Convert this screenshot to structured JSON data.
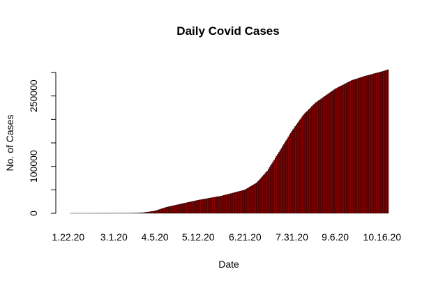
{
  "chart_data": {
    "type": "bar",
    "title": "Daily Covid Cases",
    "xlabel": "Date",
    "ylabel": "No. of Cases",
    "bar_color": "#8b0000",
    "bar_border_color": "#000000",
    "grid": false,
    "legend": "none",
    "x_date_start": "1.22.20",
    "x_date_end": "10.21.20",
    "x_tick_labels": [
      "1.22.20",
      "3.1.20",
      "4.5.20",
      "5.12.20",
      "6.21.20",
      "7.31.20",
      "9.6.20",
      "10.16.20"
    ],
    "ylim": [
      0,
      300000
    ],
    "y_ticks": [
      0,
      50000,
      100000,
      150000,
      200000,
      250000,
      300000
    ],
    "y_tick_labels": [
      "0",
      "",
      "100000",
      "",
      "",
      "250000",
      ""
    ],
    "control_points": [
      {
        "date": "1.22.20",
        "value": 0
      },
      {
        "date": "3.15.20",
        "value": 200
      },
      {
        "date": "3.25.20",
        "value": 1000
      },
      {
        "date": "4.5.20",
        "value": 5000
      },
      {
        "date": "4.15.20",
        "value": 13000
      },
      {
        "date": "5.1.20",
        "value": 22000
      },
      {
        "date": "5.12.20",
        "value": 28000
      },
      {
        "date": "6.1.20",
        "value": 37000
      },
      {
        "date": "6.21.20",
        "value": 50000
      },
      {
        "date": "7.1.20",
        "value": 65000
      },
      {
        "date": "7.10.20",
        "value": 90000
      },
      {
        "date": "7.20.20",
        "value": 130000
      },
      {
        "date": "7.31.20",
        "value": 175000
      },
      {
        "date": "8.10.20",
        "value": 210000
      },
      {
        "date": "8.20.20",
        "value": 235000
      },
      {
        "date": "9.6.20",
        "value": 265000
      },
      {
        "date": "9.20.20",
        "value": 283000
      },
      {
        "date": "10.1.20",
        "value": 292000
      },
      {
        "date": "10.16.20",
        "value": 302000
      },
      {
        "date": "10.21.20",
        "value": 306000
      }
    ]
  }
}
